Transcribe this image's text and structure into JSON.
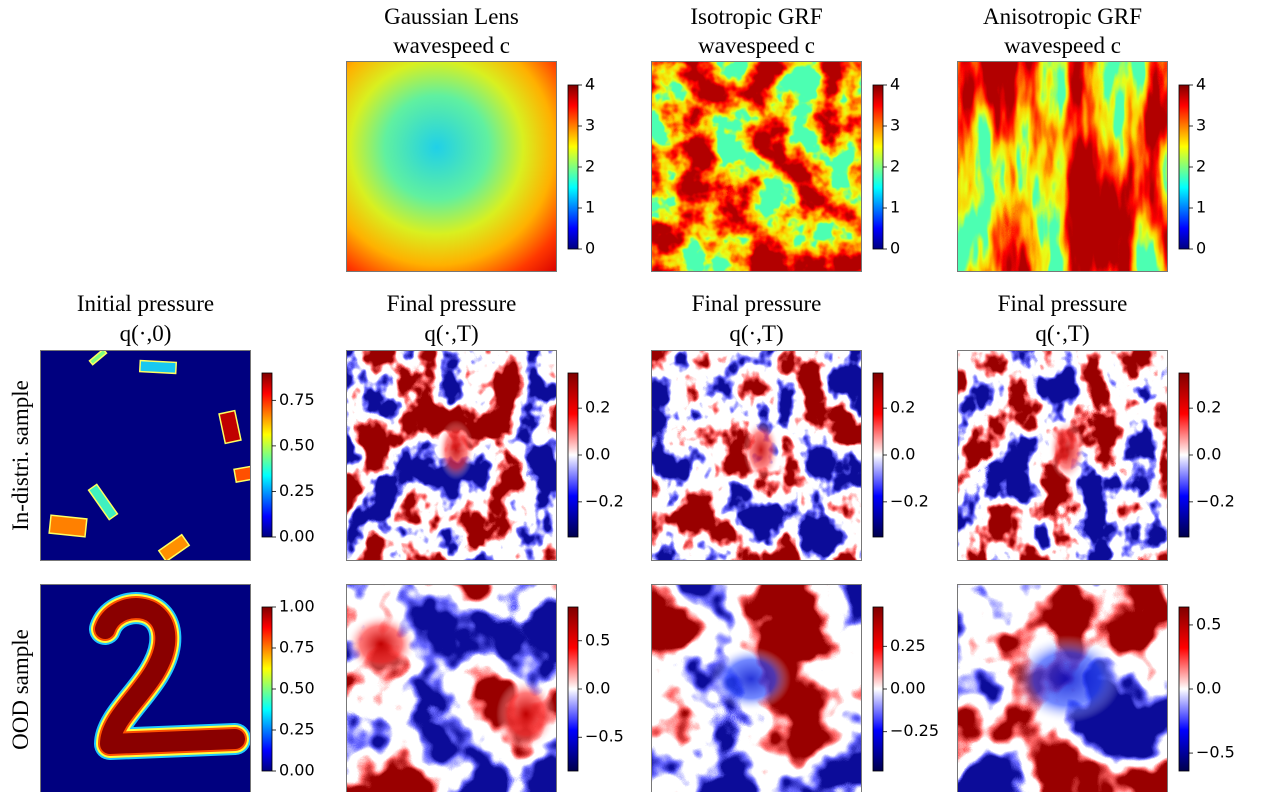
{
  "rows": [
    {
      "panels": [
        {
          "title": [
            "Gaussian Lens",
            "wavespeed c"
          ],
          "colormap": "jet",
          "colorbar": {
            "lim": [
              0,
              4
            ],
            "ticks": [
              0,
              1,
              2,
              3,
              4
            ]
          }
        },
        {
          "title": [
            "Isotropic GRF",
            "wavespeed c"
          ],
          "colormap": "jet",
          "colorbar": {
            "lim": [
              0,
              4
            ],
            "ticks": [
              0,
              1,
              2,
              3,
              4
            ]
          }
        },
        {
          "title": [
            "Anisotropic GRF",
            "wavespeed c"
          ],
          "colormap": "jet",
          "colorbar": {
            "lim": [
              0,
              4
            ],
            "ticks": [
              0,
              1,
              2,
              3,
              4
            ]
          }
        }
      ]
    },
    {
      "label": "In-distri. sample",
      "panels": [
        {
          "title": [
            "Initial pressure",
            "q(·,0)"
          ],
          "colormap": "jet",
          "colorbar": {
            "lim": [
              0,
              0.9
            ],
            "ticks": [
              {
                "value": 0,
                "label": "0.00"
              },
              0.25,
              {
                "value": 0.5,
                "label": "0.50"
              },
              0.75
            ]
          }
        },
        {
          "title": [
            "Final pressure",
            "q(·,T)"
          ],
          "colormap": "seismic",
          "colorbar": {
            "lim": [
              -0.35,
              0.35
            ],
            "ticks": [
              {
                "value": -0.2,
                "label": "−0.2"
              },
              {
                "value": 0,
                "label": "0.0"
              },
              0.2
            ]
          }
        },
        {
          "title": [
            "Final pressure",
            "q(·,T)"
          ],
          "colormap": "seismic",
          "colorbar": {
            "lim": [
              -0.35,
              0.35
            ],
            "ticks": [
              {
                "value": -0.2,
                "label": "−0.2"
              },
              {
                "value": 0,
                "label": "0.0"
              },
              0.2
            ]
          }
        },
        {
          "title": [
            "Final pressure",
            "q(·,T)"
          ],
          "colormap": "seismic",
          "colorbar": {
            "lim": [
              -0.35,
              0.35
            ],
            "ticks": [
              {
                "value": -0.2,
                "label": "−0.2"
              },
              {
                "value": 0,
                "label": "0.0"
              },
              0.2
            ]
          }
        }
      ]
    },
    {
      "label": "OOD sample",
      "panels": [
        {
          "colormap": "jet",
          "colorbar": {
            "lim": [
              0,
              1
            ],
            "ticks": [
              {
                "value": 0,
                "label": "0.00"
              },
              0.25,
              {
                "value": 0.5,
                "label": "0.50"
              },
              0.75,
              {
                "value": 1,
                "label": "1.00"
              }
            ]
          }
        },
        {
          "colormap": "seismic",
          "colorbar": {
            "lim": [
              -0.85,
              0.85
            ],
            "ticks": [
              {
                "value": -0.5,
                "label": "−0.5"
              },
              {
                "value": 0,
                "label": "0.0"
              },
              0.5
            ]
          }
        },
        {
          "colormap": "seismic",
          "colorbar": {
            "lim": [
              -0.48,
              0.48
            ],
            "ticks": [
              {
                "value": -0.25,
                "label": "−0.25"
              },
              {
                "value": 0,
                "label": "0.00"
              },
              0.25
            ]
          }
        },
        {
          "colormap": "seismic",
          "colorbar": {
            "lim": [
              -0.64,
              0.64
            ],
            "ticks": [
              {
                "value": -0.5,
                "label": "−0.5"
              },
              {
                "value": 0,
                "label": "0.0"
              },
              0.5
            ]
          }
        }
      ]
    }
  ]
}
